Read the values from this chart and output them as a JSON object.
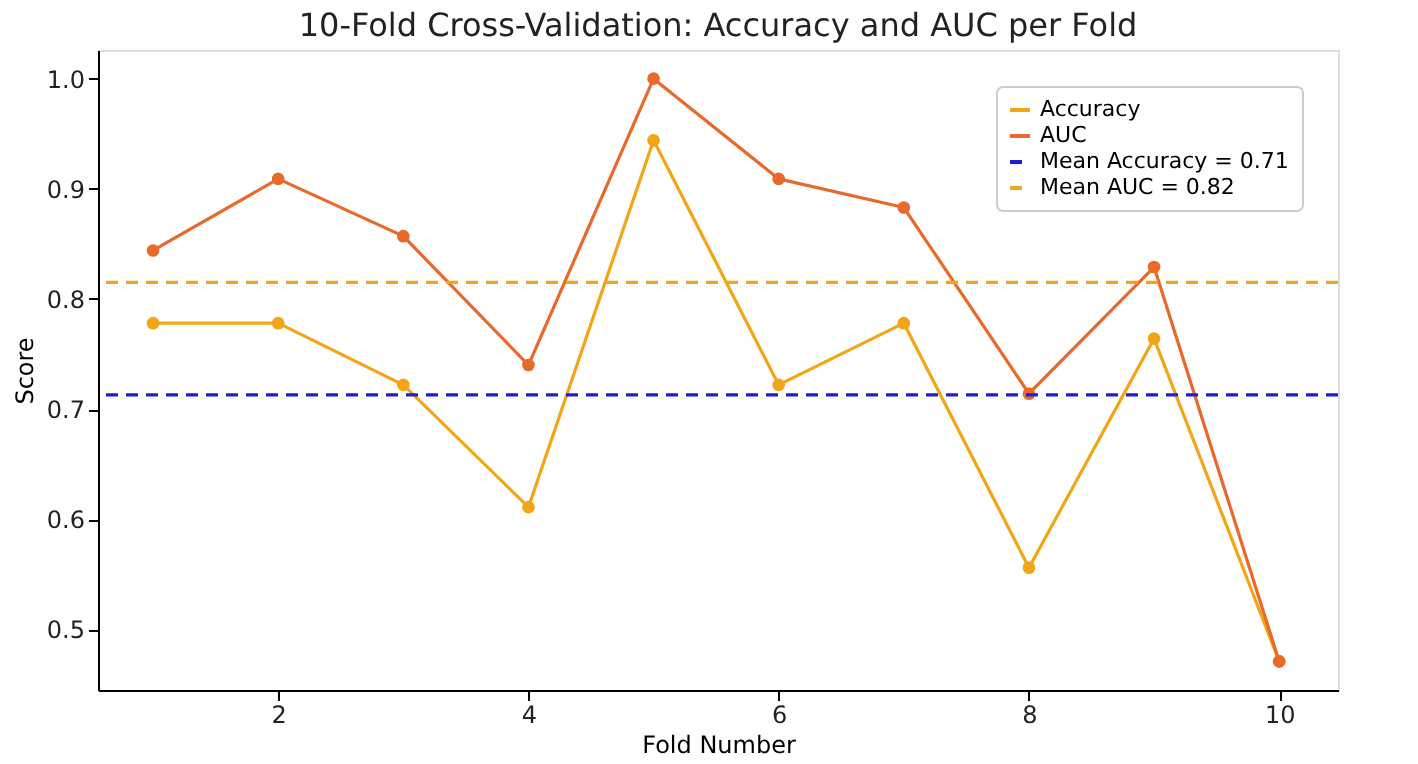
{
  "chart_data": {
    "type": "line",
    "title": "10-Fold Cross-Validation: Accuracy and AUC per Fold",
    "xlabel": "Fold Number",
    "ylabel": "Score",
    "x": [
      1,
      2,
      3,
      4,
      5,
      6,
      7,
      8,
      9,
      10
    ],
    "series": [
      {
        "name": "Accuracy",
        "color": "#f2a516",
        "values": [
          0.778,
          0.778,
          0.722,
          0.611,
          0.944,
          0.722,
          0.778,
          0.556,
          0.764,
          0.471
        ]
      },
      {
        "name": "AUC",
        "color": "#e8692a",
        "values": [
          0.844,
          0.909,
          0.857,
          0.74,
          1.0,
          0.909,
          0.883,
          0.714,
          0.829,
          0.471
        ]
      }
    ],
    "ref_lines": [
      {
        "axis": "y",
        "value": 0.713,
        "label": "Mean Accuracy = 0.71",
        "color": "#1f1fd6",
        "line_style": "dashed"
      },
      {
        "axis": "y",
        "value": 0.815,
        "label": "Mean AUC = 0.82",
        "color": "#f2a516",
        "line_style": "dashed"
      }
    ],
    "xlim": [
      0.56,
      10.47
    ],
    "xticks": [
      2,
      4,
      6,
      8,
      10
    ],
    "ylim": [
      0.445,
      1.026
    ],
    "yticks": [
      0.5,
      0.6,
      0.7,
      0.8,
      0.9,
      {
        "value": 1,
        "label": "1.0"
      }
    ],
    "grid": false,
    "legend": "top right",
    "marker": "circle",
    "line_style": "solid"
  }
}
